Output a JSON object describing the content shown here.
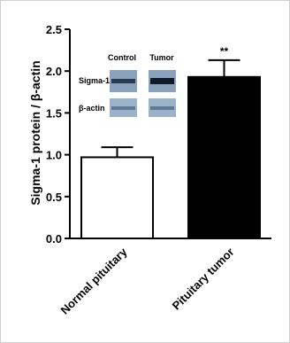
{
  "chart_data": {
    "type": "bar",
    "categories": [
      "Normal pituitary",
      "Pituitary tumor"
    ],
    "values": [
      0.97,
      1.93
    ],
    "errors": [
      0.12,
      0.2
    ],
    "bar_colors": [
      "#ffffff",
      "#000000"
    ],
    "significance": [
      "",
      "**"
    ],
    "ylabel": "Sigma-1 protein / β-actin",
    "ylim": [
      0,
      2.5
    ],
    "yticks": [
      0.0,
      0.5,
      1.0,
      1.5,
      2.0,
      2.5
    ],
    "ytick_labels": [
      "0.0",
      "0.5",
      "1.0",
      "1.5",
      "2.0",
      "2.5"
    ],
    "grid": false
  },
  "inset_blot": {
    "columns": [
      "Control",
      "Tumor"
    ],
    "rows": [
      "Sigma-1",
      "β-actin"
    ]
  }
}
